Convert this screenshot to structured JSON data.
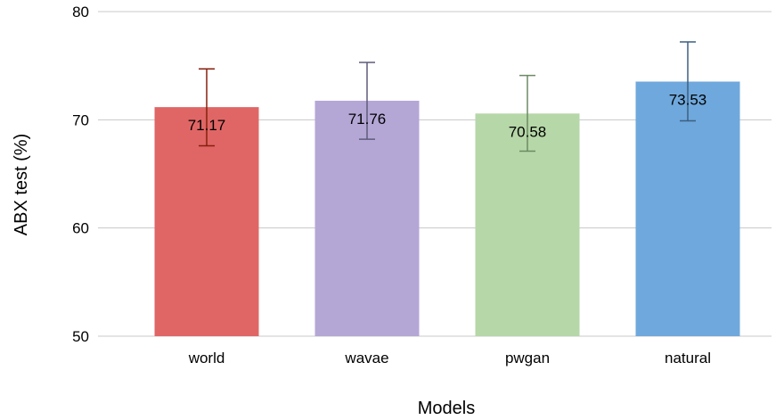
{
  "chart_data": {
    "type": "bar",
    "title": "",
    "xlabel": "Models",
    "ylabel": "ABX test (%)",
    "categories": [
      "world",
      "wavae",
      "pwgan",
      "natural"
    ],
    "values": [
      71.17,
      71.76,
      70.58,
      73.53
    ],
    "error_low": [
      67.6,
      68.2,
      67.1,
      69.9
    ],
    "error_high": [
      74.7,
      75.3,
      74.1,
      77.2
    ],
    "value_labels": [
      "71.17",
      "71.76",
      "70.58",
      "73.53"
    ],
    "ylim": [
      50,
      80
    ],
    "yticks": [
      50,
      60,
      70,
      80
    ],
    "grid": true,
    "legend": "none",
    "colors": {
      "bars": [
        "#e06666",
        "#b4a7d6",
        "#b6d7a8",
        "#6fa8dc"
      ],
      "errorbars": [
        "#85200c",
        "#5f5b7a",
        "#6b8a63",
        "#3d5f80"
      ]
    }
  }
}
